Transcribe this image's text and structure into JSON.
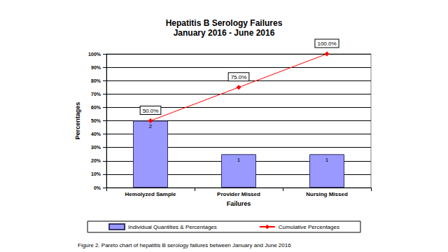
{
  "chart_data": {
    "type": "bar",
    "title": "Hepatitis B Serology Failures",
    "subtitle": "January 2016 - June 2016",
    "x_label": "Failures",
    "y_label": "Percentages",
    "caption": "Figure 2. Pareto chart of hepatitis B serology failures between January and June 2016",
    "categories": [
      "Hemolyzed Sample",
      "Provider Missed",
      "Nursing Missed"
    ],
    "series": [
      {
        "name": "Individual Quantities & Percentages",
        "type": "bar",
        "color": "#9999ff",
        "values": [
          50,
          25,
          25
        ],
        "counts": [
          2,
          1,
          1
        ]
      },
      {
        "name": "Cumulative Percentages",
        "type": "line",
        "color": "#ff0000",
        "marker": "diamond",
        "line_style": "solid",
        "values": [
          50,
          75,
          100
        ],
        "value_labels": [
          "50.0%",
          "75.0%",
          "100.0%"
        ]
      }
    ],
    "ylim": [
      0,
      100
    ],
    "yticks": [
      {
        "value": 0,
        "label": "0%"
      },
      {
        "value": 10,
        "label": "10%"
      },
      {
        "value": 20,
        "label": "20%"
      },
      {
        "value": 30,
        "label": "30%"
      },
      {
        "value": 40,
        "label": "40%"
      },
      {
        "value": 50,
        "label": "50%"
      },
      {
        "value": 60,
        "label": "60%"
      },
      {
        "value": 70,
        "label": "70%"
      },
      {
        "value": 80,
        "label": "80%"
      },
      {
        "value": 90,
        "label": "90%"
      },
      {
        "value": 100,
        "label": "100%"
      }
    ],
    "grid": true,
    "legend": "bottom",
    "data_labels": true
  }
}
